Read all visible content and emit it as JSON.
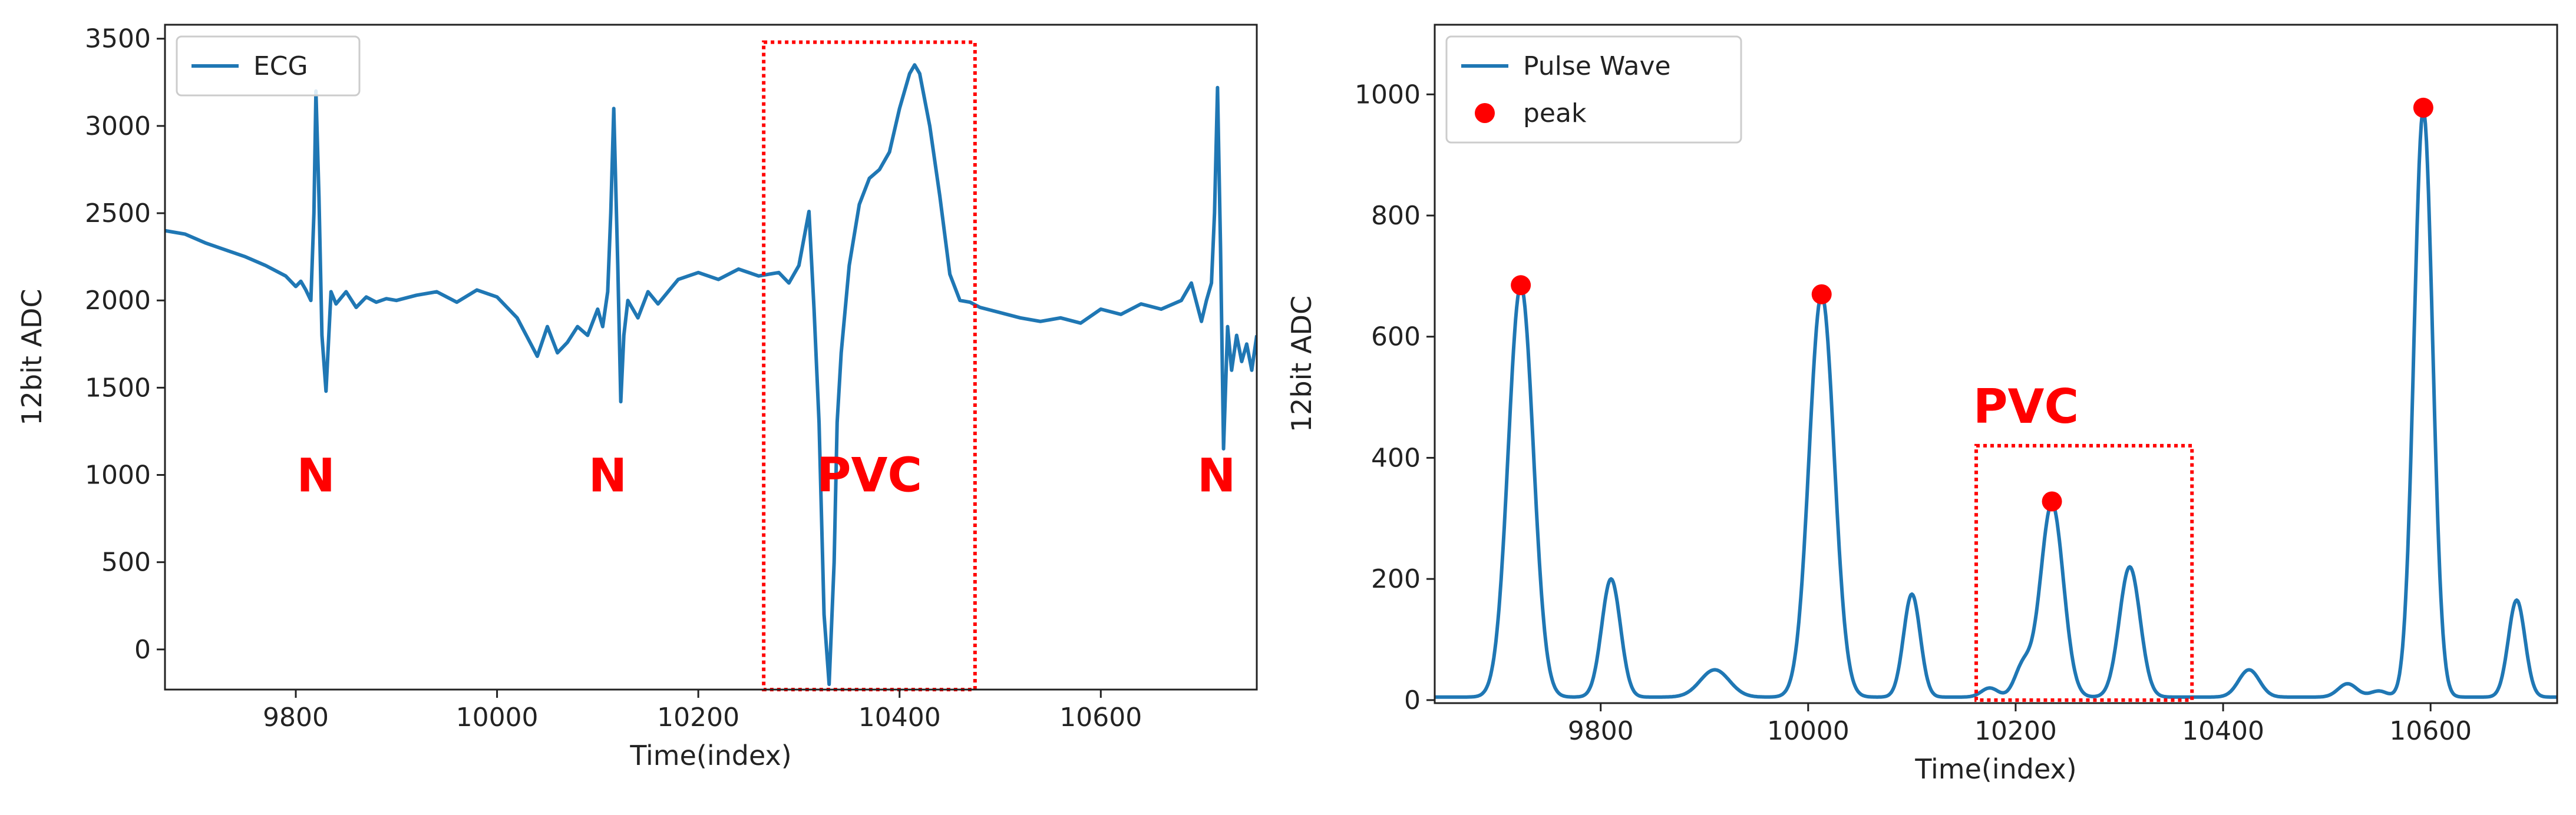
{
  "chart_data": [
    {
      "type": "line",
      "id": "ecg",
      "xlabel": "Time(index)",
      "ylabel": "12bit ADC",
      "xlim": [
        9670,
        10755
      ],
      "ylim": [
        -230,
        3580
      ],
      "xticks": [
        9800,
        10000,
        10200,
        10400,
        10600
      ],
      "yticks": [
        0,
        500,
        1000,
        1500,
        2000,
        2500,
        3000,
        3500
      ],
      "grid": false,
      "legend": {
        "position": "top-left",
        "entries": [
          "ECG"
        ]
      },
      "series": [
        {
          "name": "ECG",
          "color": "#1f77b4",
          "x": [
            9670,
            9690,
            9710,
            9730,
            9750,
            9770,
            9790,
            9800,
            9805,
            9810,
            9815,
            9818,
            9820,
            9823,
            9826,
            9830,
            9835,
            9840,
            9850,
            9860,
            9870,
            9880,
            9890,
            9900,
            9920,
            9940,
            9960,
            9980,
            10000,
            10020,
            10040,
            10050,
            10060,
            10070,
            10080,
            10090,
            10100,
            10105,
            10110,
            10113,
            10116,
            10120,
            10123,
            10126,
            10130,
            10140,
            10150,
            10160,
            10180,
            10200,
            10220,
            10240,
            10260,
            10270,
            10280,
            10290,
            10300,
            10310,
            10315,
            10320,
            10325,
            10330,
            10335,
            10338,
            10342,
            10350,
            10360,
            10370,
            10380,
            10390,
            10400,
            10410,
            10415,
            10420,
            10430,
            10440,
            10450,
            10460,
            10470,
            10480,
            10500,
            10520,
            10540,
            10560,
            10580,
            10600,
            10620,
            10640,
            10660,
            10680,
            10690,
            10700,
            10705,
            10710,
            10713,
            10716,
            10719,
            10722,
            10726,
            10730,
            10735,
            10740,
            10745,
            10750,
            10755
          ],
          "values": [
            2400,
            2380,
            2330,
            2290,
            2250,
            2200,
            2140,
            2080,
            2110,
            2060,
            2000,
            2500,
            3200,
            2600,
            1800,
            1480,
            2050,
            1980,
            2050,
            1960,
            2020,
            1990,
            2010,
            2000,
            2030,
            2050,
            1990,
            2060,
            2020,
            1900,
            1680,
            1850,
            1700,
            1760,
            1850,
            1800,
            1950,
            1850,
            2050,
            2500,
            3100,
            2200,
            1420,
            1800,
            2000,
            1900,
            2050,
            1980,
            2120,
            2160,
            2120,
            2180,
            2140,
            2150,
            2160,
            2100,
            2200,
            2510,
            1950,
            1300,
            200,
            -200,
            500,
            1300,
            1700,
            2200,
            2550,
            2700,
            2750,
            2850,
            3100,
            3300,
            3350,
            3300,
            3000,
            2600,
            2150,
            2000,
            1990,
            1960,
            1930,
            1900,
            1880,
            1900,
            1870,
            1950,
            1920,
            1980,
            1950,
            2000,
            2100,
            1880,
            2000,
            2100,
            2500,
            3220,
            2300,
            1150,
            1850,
            1600,
            1800,
            1650,
            1750,
            1600,
            1800
          ]
        }
      ],
      "annotations": [
        {
          "text": "N",
          "x": 9820,
          "y": 1000
        },
        {
          "text": "N",
          "x": 10110,
          "y": 1000
        },
        {
          "text": "PVC",
          "x": 10370,
          "y": 1000
        },
        {
          "text": "N",
          "x": 10715,
          "y": 1000
        }
      ],
      "highlight_box": {
        "x": [
          10265,
          10475
        ],
        "y": [
          -230,
          3480
        ],
        "color": "#ff0000",
        "style": "dotted"
      }
    },
    {
      "type": "line",
      "id": "pulse",
      "xlabel": "Time(index)",
      "ylabel": "12bit ADC",
      "xlim": [
        9640,
        10722
      ],
      "ylim": [
        -5,
        1115
      ],
      "xticks": [
        9800,
        10000,
        10200,
        10400,
        10600
      ],
      "yticks": [
        0,
        200,
        400,
        600,
        800,
        1000
      ],
      "grid": false,
      "legend": {
        "position": "top-left",
        "entries": [
          "Pulse Wave",
          "peak"
        ]
      },
      "series": [
        {
          "name": "Pulse Wave",
          "color": "#1f77b4",
          "baseline": 5,
          "components": [
            {
              "center": 9723,
              "amplitude": 680,
              "width": 12
            },
            {
              "center": 9810,
              "amplitude": 195,
              "width": 9
            },
            {
              "center": 9910,
              "amplitude": 45,
              "width": 14
            },
            {
              "center": 10013,
              "amplitude": 665,
              "width": 12
            },
            {
              "center": 10100,
              "amplitude": 170,
              "width": 8
            },
            {
              "center": 10175,
              "amplitude": 15,
              "width": 8
            },
            {
              "center": 10207,
              "amplitude": 50,
              "width": 8
            },
            {
              "center": 10235,
              "amplitude": 320,
              "width": 11
            },
            {
              "center": 10310,
              "amplitude": 215,
              "width": 10
            },
            {
              "center": 10425,
              "amplitude": 45,
              "width": 10
            },
            {
              "center": 10520,
              "amplitude": 22,
              "width": 9
            },
            {
              "center": 10550,
              "amplitude": 10,
              "width": 8
            },
            {
              "center": 10593,
              "amplitude": 970,
              "width": 9
            },
            {
              "center": 10683,
              "amplitude": 160,
              "width": 8
            }
          ]
        },
        {
          "name": "peak",
          "type": "scatter",
          "color": "#ff0000",
          "x": [
            9723,
            10013,
            10235,
            10593
          ],
          "values": [
            685,
            670,
            328,
            978
          ]
        }
      ],
      "annotations": [
        {
          "text": "PVC",
          "x": 10210,
          "y": 485
        }
      ],
      "highlight_box": {
        "x": [
          10162,
          10370
        ],
        "y": [
          0,
          420
        ],
        "color": "#ff0000",
        "style": "dotted"
      }
    }
  ]
}
